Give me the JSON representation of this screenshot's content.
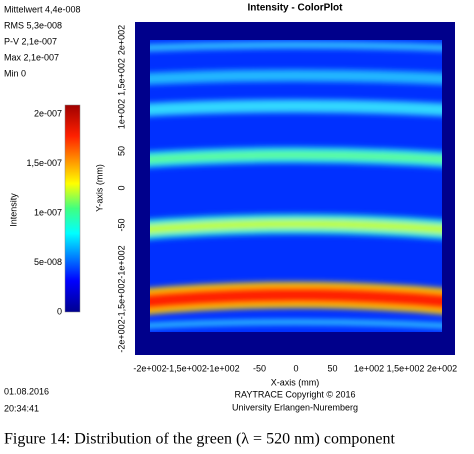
{
  "stats": [
    "Mittelwert 4,4e-008",
    "RMS 5,3e-008",
    "P-V 2,1e-007",
    "Max 2,1e-007",
    "Min 0"
  ],
  "title": "Intensity - ColorPlot",
  "colorbar": {
    "label": "Intensity",
    "ticks": [
      "2e-007",
      "1,5e-007",
      "1e-007",
      "5e-008",
      "0"
    ]
  },
  "y_axis": {
    "label": "Y-axis (mm)",
    "ticks": [
      "2e+002",
      "1,5e+002",
      "1e+002",
      "50",
      "0",
      "-50",
      "-1e+002",
      "-1,5e+002",
      "-2e+002"
    ]
  },
  "x_axis": {
    "label": "X-axis (mm)",
    "ticks": [
      "-2e+002",
      "-1,5e+002",
      "-1e+002",
      "-50",
      "0",
      "50",
      "1e+002",
      "1,5e+002",
      "2e+002"
    ]
  },
  "footer": {
    "date": "01.08.2016",
    "time": "20:34:41",
    "copyright": "RAYTRACE Copyright © 2016",
    "university": "University Erlangen-Nuremberg"
  },
  "caption": "Figure 14: Distribution of the green (λ = 520 nm) component"
}
